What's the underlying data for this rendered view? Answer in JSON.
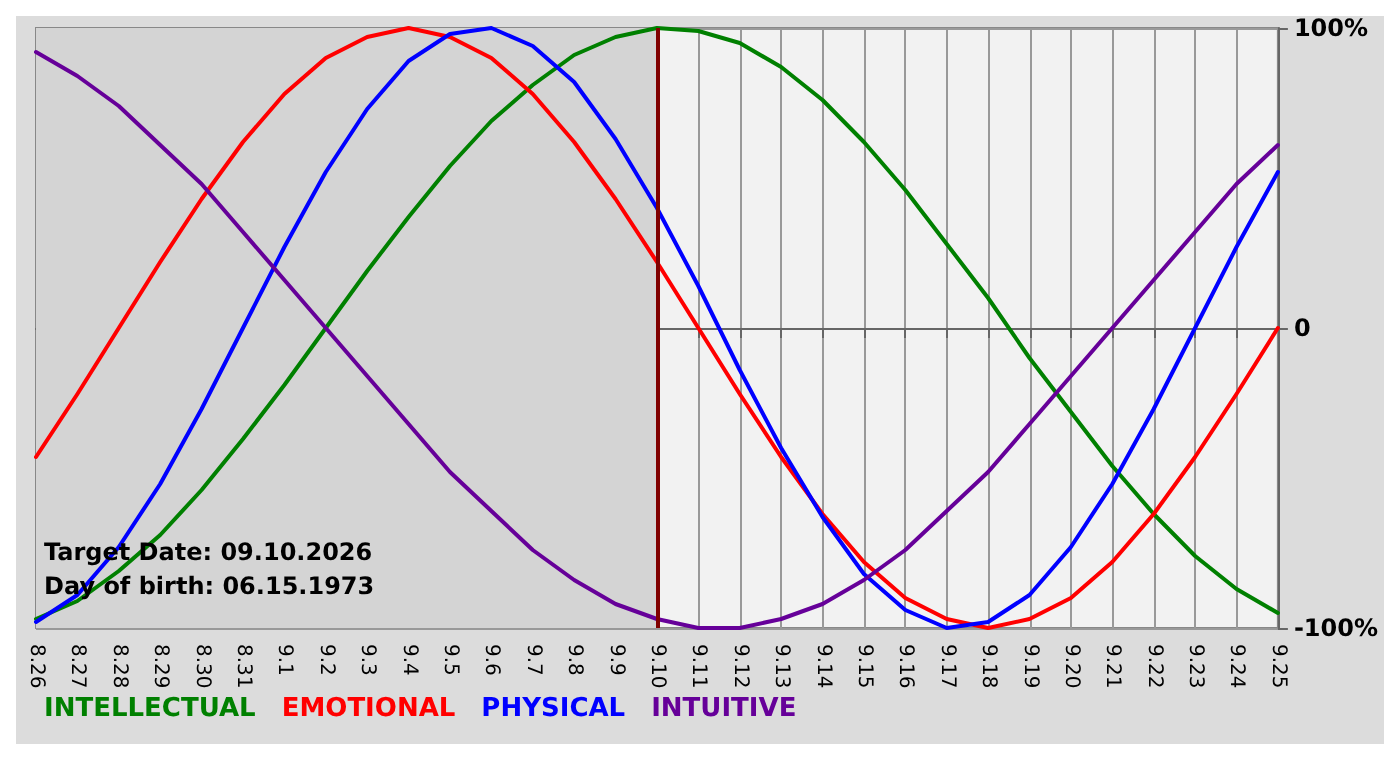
{
  "chart_data": {
    "type": "line",
    "categories": [
      "8.26",
      "8.27",
      "8.28",
      "8.29",
      "8.30",
      "8.31",
      "9.1",
      "9.2",
      "9.3",
      "9.4",
      "9.5",
      "9.6",
      "9.7",
      "9.8",
      "9.9",
      "9.10",
      "9.11",
      "9.12",
      "9.13",
      "9.14",
      "9.15",
      "9.16",
      "9.17",
      "9.18",
      "9.19",
      "9.20",
      "9.21",
      "9.22",
      "9.23",
      "9.24",
      "9.25"
    ],
    "series": [
      {
        "name": "INTELLECTUAL",
        "color": "#008000",
        "values": [
          -97,
          -91,
          -81,
          -69,
          -54,
          -37,
          -19,
          0,
          19,
          37,
          54,
          69,
          81,
          91,
          97,
          100,
          99,
          95,
          87,
          76,
          62,
          46,
          28,
          10,
          -10,
          -28,
          -46,
          -62,
          -76,
          -87,
          -95
        ]
      },
      {
        "name": "EMOTIONAL",
        "color": "#ff0000",
        "values": [
          -43,
          -22,
          0,
          22,
          43,
          62,
          78,
          90,
          97,
          100,
          97,
          90,
          78,
          62,
          43,
          22,
          0,
          -22,
          -43,
          -62,
          -78,
          -90,
          -97,
          -100,
          -97,
          -90,
          -78,
          -62,
          -43,
          -22,
          0
        ]
      },
      {
        "name": "PHYSICAL",
        "color": "#0000ff",
        "values": [
          -98,
          -89,
          -73,
          -52,
          -27,
          0,
          27,
          52,
          73,
          89,
          98,
          100,
          94,
          82,
          63,
          40,
          14,
          -14,
          -40,
          -63,
          -82,
          -94,
          -100,
          -98,
          -89,
          -73,
          -52,
          -27,
          0,
          27,
          52
        ]
      },
      {
        "name": "INTUITIVE",
        "color": "#660099",
        "values": [
          92,
          84,
          74,
          61,
          48,
          32,
          16,
          0,
          -16,
          -32,
          -48,
          -61,
          -74,
          -84,
          -92,
          -97,
          -100,
          -100,
          -97,
          -92,
          -84,
          -74,
          -61,
          -48,
          -32,
          -16,
          0,
          16,
          32,
          48,
          61
        ]
      }
    ],
    "ylim": [
      -100,
      100
    ],
    "yticks": [
      {
        "value": -100,
        "label": "-100%"
      },
      0,
      {
        "value": 100,
        "label": "100%"
      }
    ],
    "grid": true,
    "legend": "bottom left",
    "marker": "none",
    "line_style": "solid",
    "ref_lines": [
      {
        "axis": "x",
        "value": "9.10",
        "color": "#800000"
      }
    ],
    "bands": [
      {
        "axis": "x",
        "from": "8.26",
        "to": "9.10",
        "color": "#d4d4d4"
      }
    ],
    "annotations": [
      "Target Date: 09.10.2026",
      "Day of birth: 06.15.1973"
    ]
  }
}
